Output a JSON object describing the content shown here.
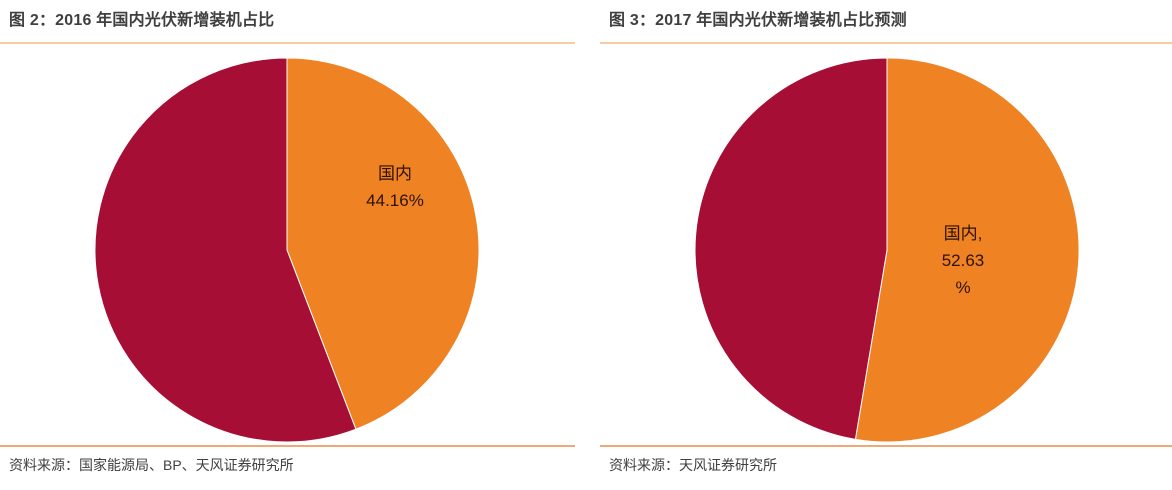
{
  "figures": [
    {
      "title": "图 2：2016 年国内光伏新增装机占比",
      "source": "资料来源：国家能源局、BP、天风证券研究所",
      "pie_label": "国内\n44.16%"
    },
    {
      "title": "图 3：2017 年国内光伏新增装机占比预测",
      "source": "资料来源：天风证券研究所",
      "pie_label": "国内,\n52.63\n%"
    }
  ],
  "chart_data": [
    {
      "type": "pie",
      "title": "图 2：2016 年国内光伏新增装机占比",
      "slices": [
        {
          "label": "国内",
          "value": 44.16,
          "color": "#EF8222"
        },
        {
          "label": "",
          "value": 55.84,
          "color": "#A60E35"
        }
      ],
      "start_angle_deg": 0,
      "direction": "clockwise",
      "legend": "none",
      "data_label": "国内 44.16%",
      "source_note": "资料来源：国家能源局、BP、天风证券研究所"
    },
    {
      "type": "pie",
      "title": "图 3：2017 年国内光伏新增装机占比预测",
      "slices": [
        {
          "label": "国内",
          "value": 52.63,
          "color": "#EF8222"
        },
        {
          "label": "",
          "value": 47.37,
          "color": "#A60E35"
        }
      ],
      "start_angle_deg": 0,
      "direction": "clockwise",
      "legend": "none",
      "data_label": "国内, 52.63 %",
      "source_note": "资料来源：天风证券研究所"
    }
  ],
  "colors": {
    "domestic_slice": "#EF8222",
    "other_slice": "#A60E35",
    "title_text": "#3F3F3F",
    "source_text": "#404040",
    "label_text": "#2E1205",
    "title_rule": "#F3CDA3",
    "source_rule": "#F0A878"
  }
}
